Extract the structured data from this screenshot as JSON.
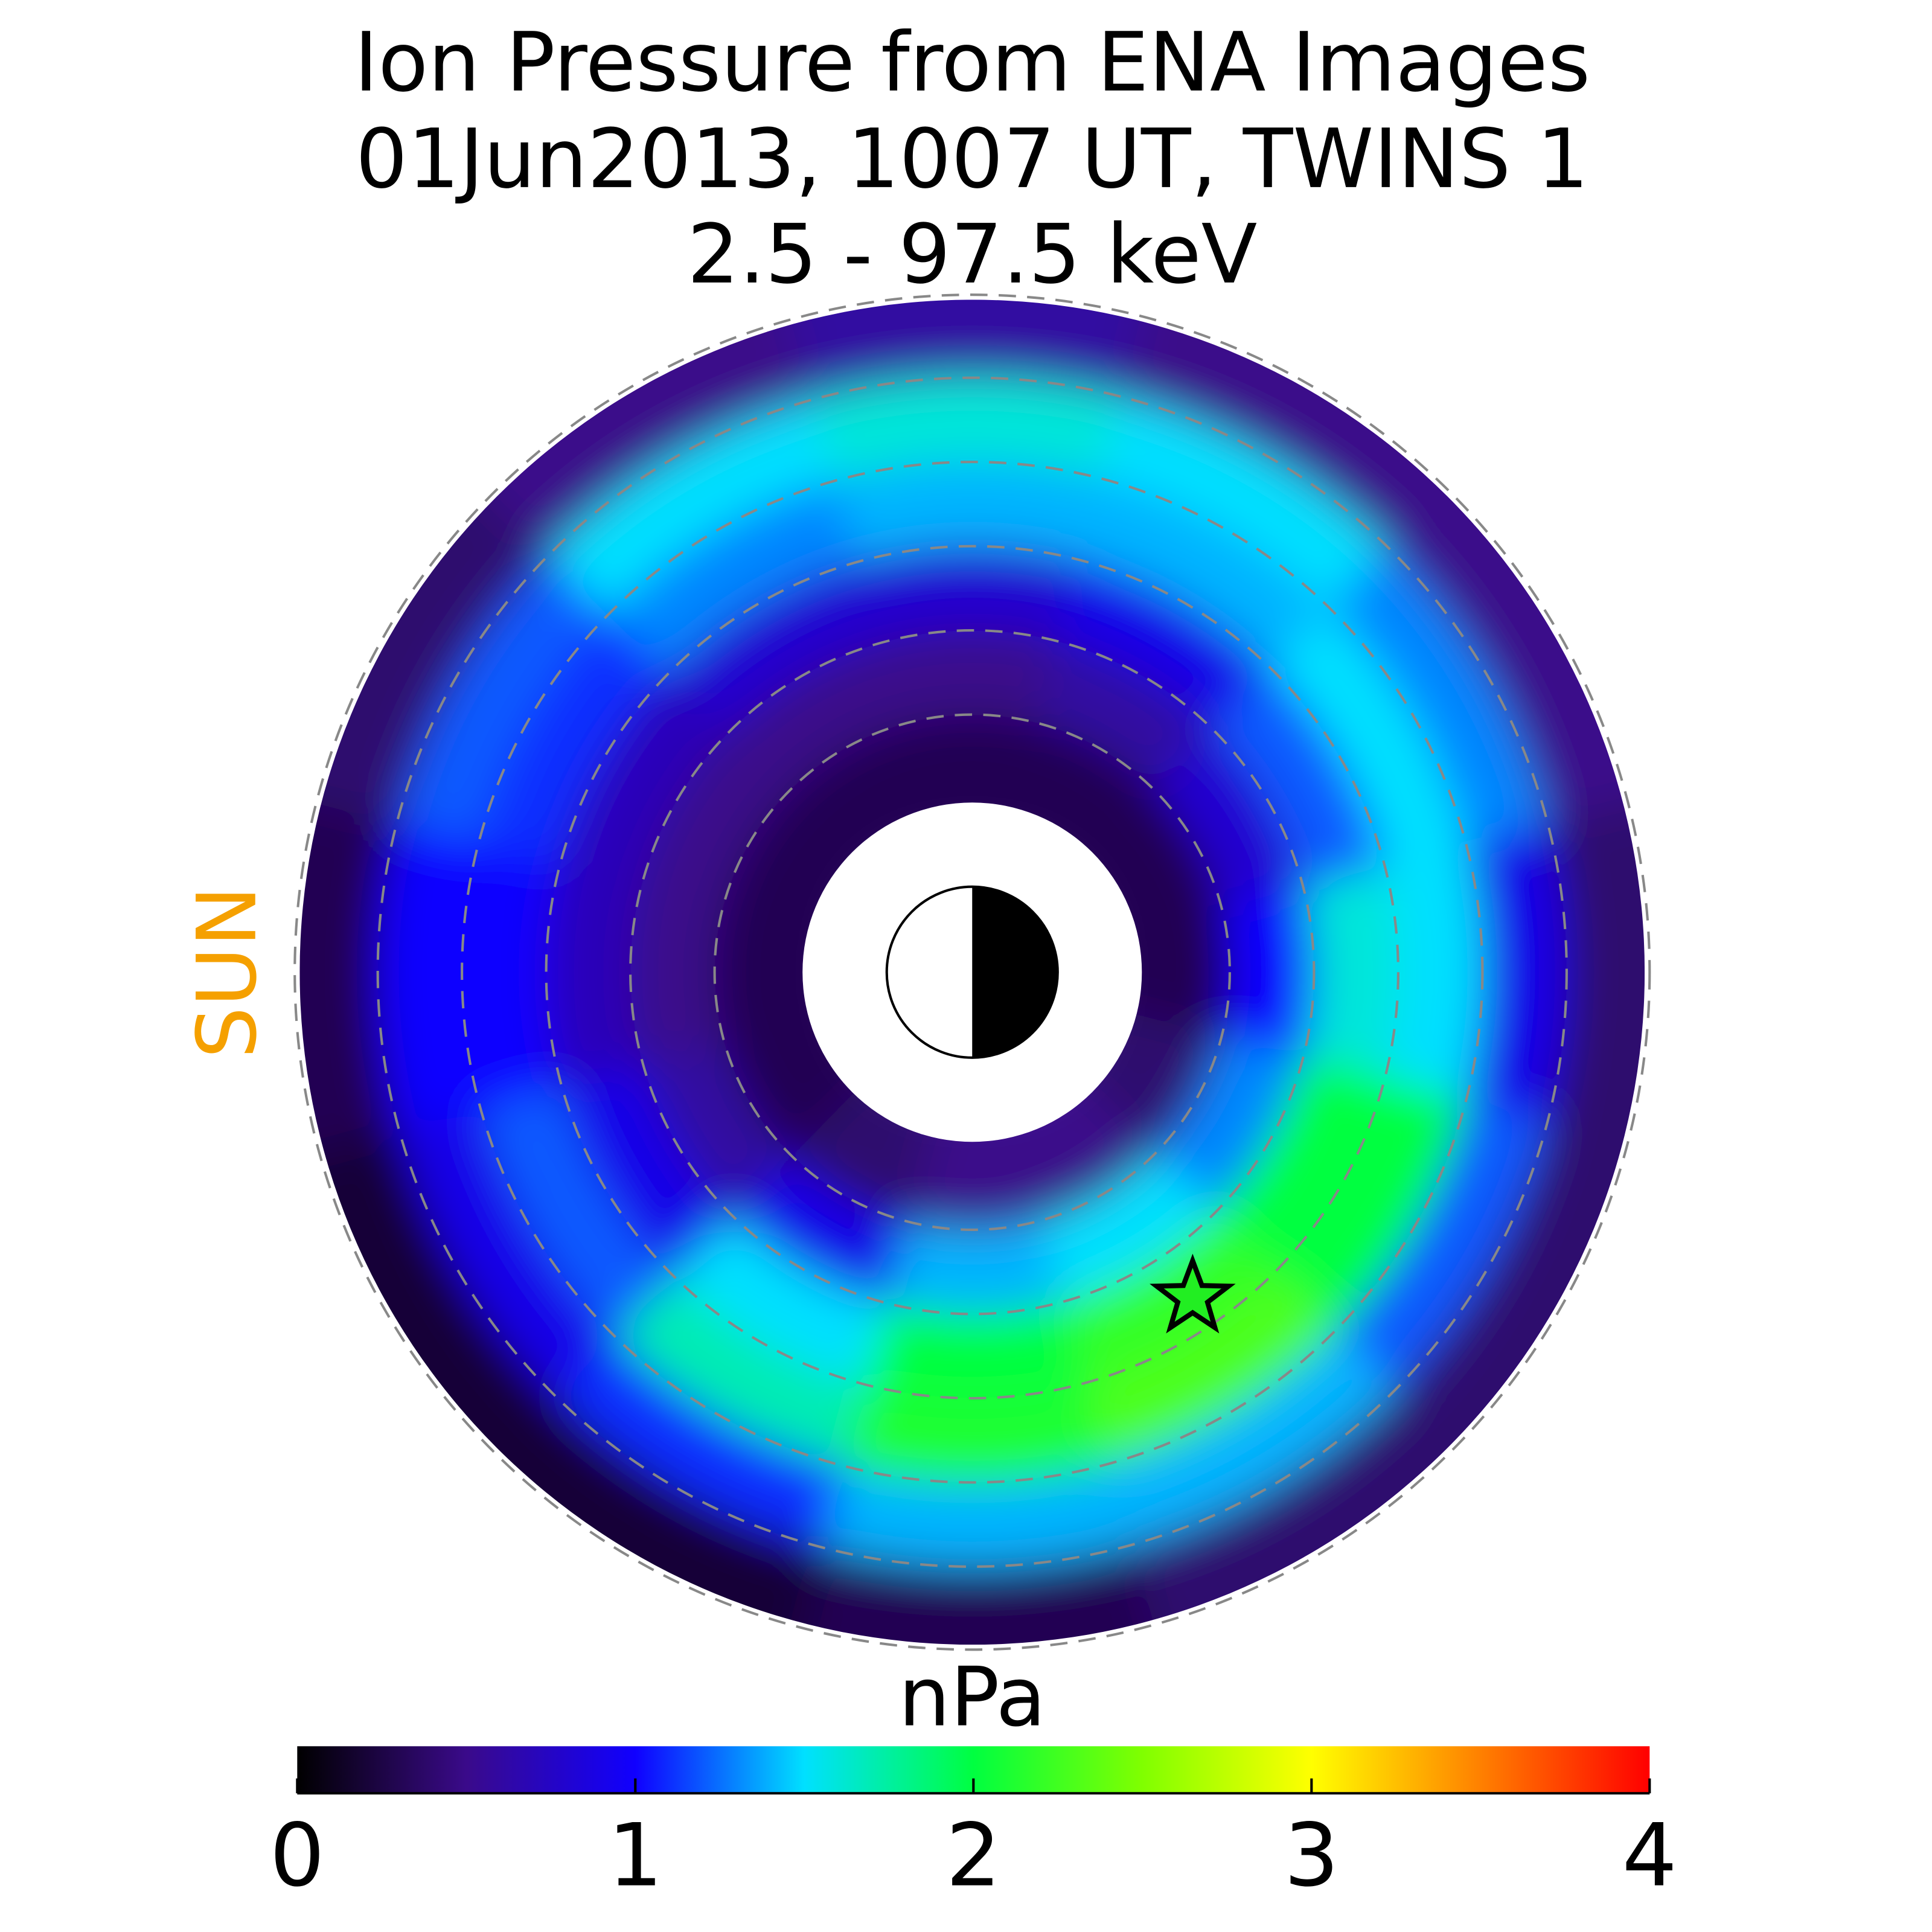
{
  "chart_data": {
    "type": "polar_map",
    "title": [
      "Ion Pressure from  ENA Images",
      "01Jun2013, 1007 UT,  TWINS 1",
      "2.5 - 97.5 keV"
    ],
    "sun_label": "SUN",
    "colorbar_label": "nPa",
    "clim": [
      0,
      4
    ],
    "cticks": [
      0,
      1,
      2,
      3,
      4
    ],
    "colormap": [
      "#000000",
      "#3a0a8a",
      "#1000ff",
      "#00e0ff",
      "#00ff40",
      "#80ff00",
      "#ffff00",
      "#ff8000",
      "#ff0000"
    ],
    "pressure": [
      [
        0.3,
        1.0,
        1.6,
        1.5,
        0.9,
        0.4
      ],
      [
        0.4,
        1.3,
        2.0,
        2.0,
        1.2,
        0.4
      ],
      [
        0.5,
        1.5,
        2.2,
        2.3,
        1.4,
        0.4
      ],
      [
        0.5,
        1.4,
        2.0,
        2.1,
        1.4,
        0.3
      ],
      [
        0.4,
        0.9,
        1.5,
        1.7,
        1.1,
        0.2
      ],
      [
        0.3,
        0.6,
        0.9,
        1.2,
        0.9,
        0.2
      ],
      [
        0.3,
        0.5,
        0.7,
        1.0,
        1.0,
        0.3
      ],
      [
        0.3,
        0.5,
        0.7,
        1.1,
        1.2,
        0.4
      ],
      [
        0.3,
        0.5,
        0.8,
        1.3,
        1.5,
        0.5
      ],
      [
        0.3,
        0.5,
        0.8,
        1.4,
        1.6,
        0.6
      ],
      [
        0.3,
        0.6,
        0.9,
        1.4,
        1.5,
        0.5
      ],
      [
        0.3,
        0.8,
        1.2,
        1.5,
        1.3,
        0.5
      ]
    ]
  }
}
